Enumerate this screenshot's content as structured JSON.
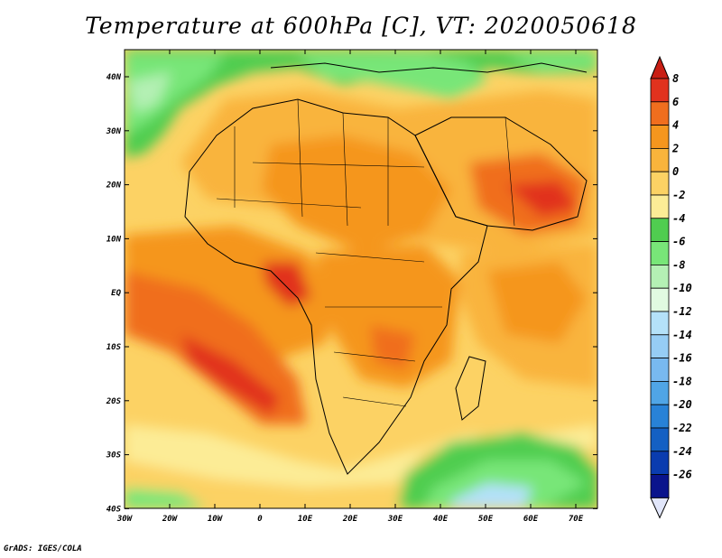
{
  "title": "Temperature at 600hPa [C], VT: 2020050618",
  "credit": "GrADS: IGES/COLA",
  "map": {
    "lon_range": [
      -30,
      75
    ],
    "lat_range": [
      -40,
      45
    ],
    "lon_ticks": [
      "30W",
      "20W",
      "10W",
      "0",
      "10E",
      "20E",
      "30E",
      "40E",
      "50E",
      "60E",
      "70E"
    ],
    "lat_ticks": [
      "40N",
      "30N",
      "20N",
      "10N",
      "EQ",
      "10S",
      "20S",
      "30S",
      "40S"
    ]
  },
  "colorbar": {
    "labels": [
      "8",
      "6",
      "4",
      "2",
      "0",
      "-2",
      "-4",
      "-6",
      "-8",
      "-10",
      "-12",
      "-14",
      "-16",
      "-18",
      "-20",
      "-22",
      "-24",
      "-26"
    ],
    "colors": [
      "#e1321e",
      "#f06e1e",
      "#f5961e",
      "#f9b43c",
      "#fcd264",
      "#fcec96",
      "#50cd50",
      "#78e678",
      "#b4f0b4",
      "#e1fae1",
      "#b4e1f9",
      "#96cdf5",
      "#78b9f0",
      "#50a5e6",
      "#2882d7",
      "#1460c3",
      "#0a3caf",
      "#0a148c"
    ],
    "top_cap": "#c81e14",
    "bottom_cap": "#e1e6fa"
  }
}
